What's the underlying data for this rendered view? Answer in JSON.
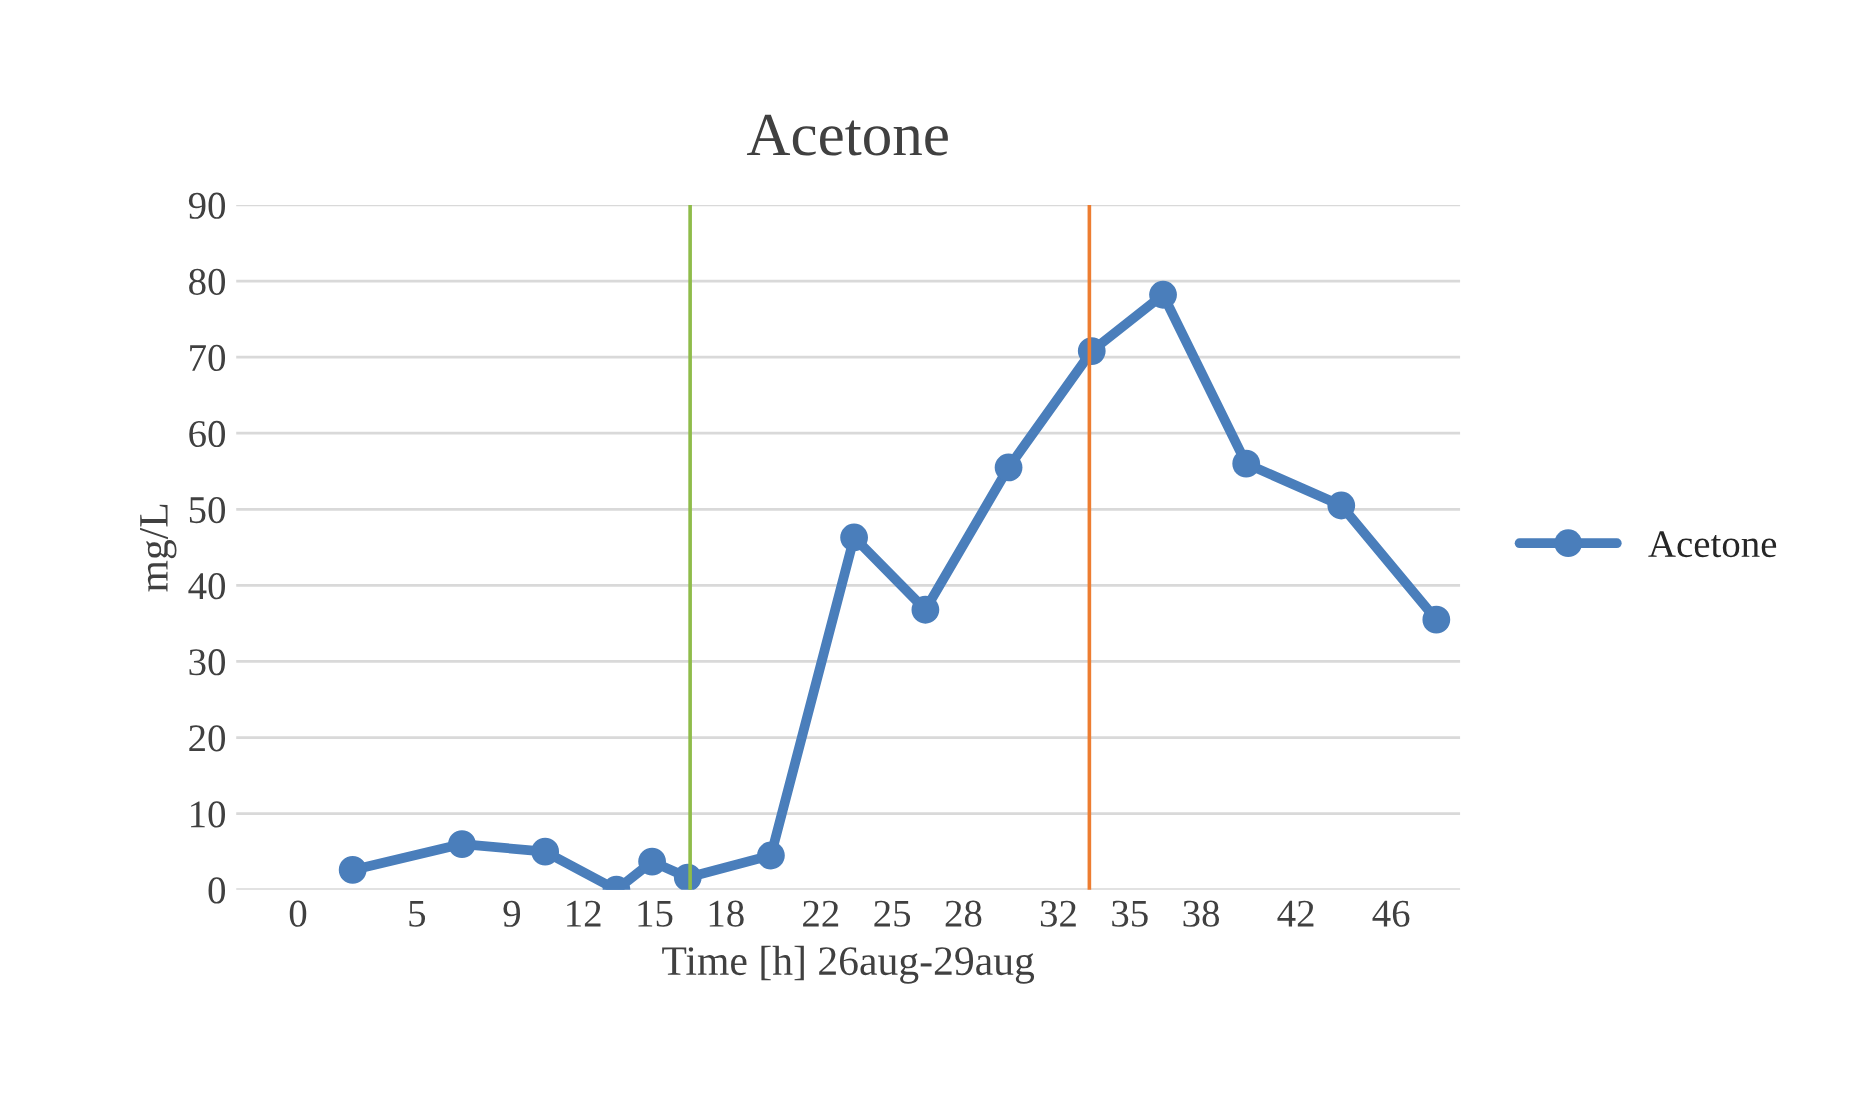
{
  "chart_data": {
    "type": "line",
    "title": "Acetone",
    "xlabel": "Time [h] 26aug-29aug",
    "ylabel": "mg/L",
    "x": [
      2.3,
      6.9,
      10.4,
      13.4,
      14.9,
      16.4,
      19.9,
      23.4,
      26.4,
      29.9,
      33.4,
      36.4,
      39.9,
      43.9,
      47.9
    ],
    "series": [
      {
        "name": "Acetone",
        "color": "#4a7ebb",
        "values": [
          2.6,
          6,
          5,
          0,
          3.7,
          1.6,
          4.5,
          46.3,
          36.8,
          55.5,
          70.8,
          78.2,
          56,
          50.5,
          35.5
        ]
      }
    ],
    "xlim": [
      -2.6,
      48.9
    ],
    "xticks": [
      0,
      5,
      9,
      12,
      15,
      18,
      22,
      25,
      28,
      32,
      35,
      38,
      42,
      46
    ],
    "ylim": [
      0,
      90
    ],
    "yticks": [
      0,
      10,
      20,
      30,
      40,
      50,
      60,
      70,
      80,
      90
    ],
    "ref_lines": [
      {
        "axis": "x",
        "value": 16.5,
        "color": "#8fbc4a"
      },
      {
        "axis": "x",
        "value": 33.3,
        "color": "#ed7d31"
      }
    ],
    "grid": "y",
    "legend": "right",
    "marker": "circle",
    "line_style": "solid"
  }
}
